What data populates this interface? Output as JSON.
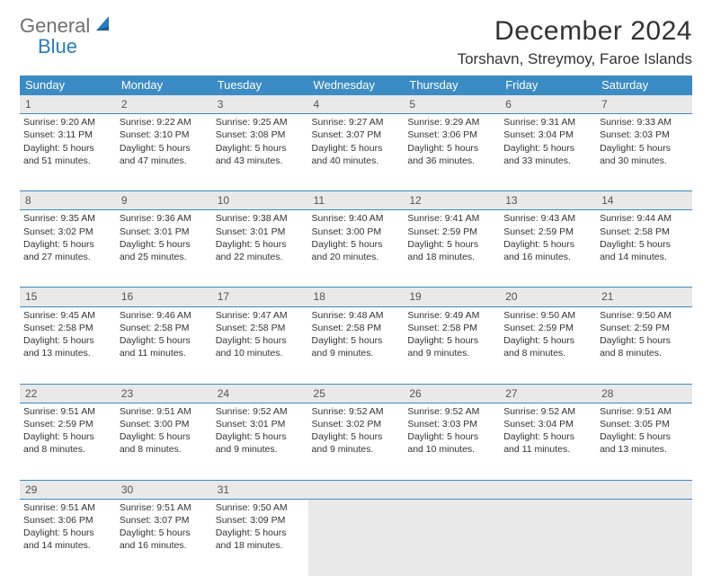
{
  "brand": {
    "text1": "General",
    "text2": "Blue"
  },
  "title": "December 2024",
  "location": "Torshavn, Streymoy, Faroe Islands",
  "colors": {
    "header_bg": "#3b8bc5",
    "header_fg": "#ffffff",
    "daynum_bg": "#e9e9e9",
    "rule": "#3b8bc5",
    "text": "#333333",
    "logo_gray": "#6f6f6f",
    "logo_blue": "#2a7bbf",
    "page_bg": "#ffffff"
  },
  "weekdays": [
    "Sunday",
    "Monday",
    "Tuesday",
    "Wednesday",
    "Thursday",
    "Friday",
    "Saturday"
  ],
  "weeks": [
    [
      {
        "n": "1",
        "sr": "Sunrise: 9:20 AM",
        "ss": "Sunset: 3:11 PM",
        "d1": "Daylight: 5 hours",
        "d2": "and 51 minutes."
      },
      {
        "n": "2",
        "sr": "Sunrise: 9:22 AM",
        "ss": "Sunset: 3:10 PM",
        "d1": "Daylight: 5 hours",
        "d2": "and 47 minutes."
      },
      {
        "n": "3",
        "sr": "Sunrise: 9:25 AM",
        "ss": "Sunset: 3:08 PM",
        "d1": "Daylight: 5 hours",
        "d2": "and 43 minutes."
      },
      {
        "n": "4",
        "sr": "Sunrise: 9:27 AM",
        "ss": "Sunset: 3:07 PM",
        "d1": "Daylight: 5 hours",
        "d2": "and 40 minutes."
      },
      {
        "n": "5",
        "sr": "Sunrise: 9:29 AM",
        "ss": "Sunset: 3:06 PM",
        "d1": "Daylight: 5 hours",
        "d2": "and 36 minutes."
      },
      {
        "n": "6",
        "sr": "Sunrise: 9:31 AM",
        "ss": "Sunset: 3:04 PM",
        "d1": "Daylight: 5 hours",
        "d2": "and 33 minutes."
      },
      {
        "n": "7",
        "sr": "Sunrise: 9:33 AM",
        "ss": "Sunset: 3:03 PM",
        "d1": "Daylight: 5 hours",
        "d2": "and 30 minutes."
      }
    ],
    [
      {
        "n": "8",
        "sr": "Sunrise: 9:35 AM",
        "ss": "Sunset: 3:02 PM",
        "d1": "Daylight: 5 hours",
        "d2": "and 27 minutes."
      },
      {
        "n": "9",
        "sr": "Sunrise: 9:36 AM",
        "ss": "Sunset: 3:01 PM",
        "d1": "Daylight: 5 hours",
        "d2": "and 25 minutes."
      },
      {
        "n": "10",
        "sr": "Sunrise: 9:38 AM",
        "ss": "Sunset: 3:01 PM",
        "d1": "Daylight: 5 hours",
        "d2": "and 22 minutes."
      },
      {
        "n": "11",
        "sr": "Sunrise: 9:40 AM",
        "ss": "Sunset: 3:00 PM",
        "d1": "Daylight: 5 hours",
        "d2": "and 20 minutes."
      },
      {
        "n": "12",
        "sr": "Sunrise: 9:41 AM",
        "ss": "Sunset: 2:59 PM",
        "d1": "Daylight: 5 hours",
        "d2": "and 18 minutes."
      },
      {
        "n": "13",
        "sr": "Sunrise: 9:43 AM",
        "ss": "Sunset: 2:59 PM",
        "d1": "Daylight: 5 hours",
        "d2": "and 16 minutes."
      },
      {
        "n": "14",
        "sr": "Sunrise: 9:44 AM",
        "ss": "Sunset: 2:58 PM",
        "d1": "Daylight: 5 hours",
        "d2": "and 14 minutes."
      }
    ],
    [
      {
        "n": "15",
        "sr": "Sunrise: 9:45 AM",
        "ss": "Sunset: 2:58 PM",
        "d1": "Daylight: 5 hours",
        "d2": "and 13 minutes."
      },
      {
        "n": "16",
        "sr": "Sunrise: 9:46 AM",
        "ss": "Sunset: 2:58 PM",
        "d1": "Daylight: 5 hours",
        "d2": "and 11 minutes."
      },
      {
        "n": "17",
        "sr": "Sunrise: 9:47 AM",
        "ss": "Sunset: 2:58 PM",
        "d1": "Daylight: 5 hours",
        "d2": "and 10 minutes."
      },
      {
        "n": "18",
        "sr": "Sunrise: 9:48 AM",
        "ss": "Sunset: 2:58 PM",
        "d1": "Daylight: 5 hours",
        "d2": "and 9 minutes."
      },
      {
        "n": "19",
        "sr": "Sunrise: 9:49 AM",
        "ss": "Sunset: 2:58 PM",
        "d1": "Daylight: 5 hours",
        "d2": "and 9 minutes."
      },
      {
        "n": "20",
        "sr": "Sunrise: 9:50 AM",
        "ss": "Sunset: 2:59 PM",
        "d1": "Daylight: 5 hours",
        "d2": "and 8 minutes."
      },
      {
        "n": "21",
        "sr": "Sunrise: 9:50 AM",
        "ss": "Sunset: 2:59 PM",
        "d1": "Daylight: 5 hours",
        "d2": "and 8 minutes."
      }
    ],
    [
      {
        "n": "22",
        "sr": "Sunrise: 9:51 AM",
        "ss": "Sunset: 2:59 PM",
        "d1": "Daylight: 5 hours",
        "d2": "and 8 minutes."
      },
      {
        "n": "23",
        "sr": "Sunrise: 9:51 AM",
        "ss": "Sunset: 3:00 PM",
        "d1": "Daylight: 5 hours",
        "d2": "and 8 minutes."
      },
      {
        "n": "24",
        "sr": "Sunrise: 9:52 AM",
        "ss": "Sunset: 3:01 PM",
        "d1": "Daylight: 5 hours",
        "d2": "and 9 minutes."
      },
      {
        "n": "25",
        "sr": "Sunrise: 9:52 AM",
        "ss": "Sunset: 3:02 PM",
        "d1": "Daylight: 5 hours",
        "d2": "and 9 minutes."
      },
      {
        "n": "26",
        "sr": "Sunrise: 9:52 AM",
        "ss": "Sunset: 3:03 PM",
        "d1": "Daylight: 5 hours",
        "d2": "and 10 minutes."
      },
      {
        "n": "27",
        "sr": "Sunrise: 9:52 AM",
        "ss": "Sunset: 3:04 PM",
        "d1": "Daylight: 5 hours",
        "d2": "and 11 minutes."
      },
      {
        "n": "28",
        "sr": "Sunrise: 9:51 AM",
        "ss": "Sunset: 3:05 PM",
        "d1": "Daylight: 5 hours",
        "d2": "and 13 minutes."
      }
    ],
    [
      {
        "n": "29",
        "sr": "Sunrise: 9:51 AM",
        "ss": "Sunset: 3:06 PM",
        "d1": "Daylight: 5 hours",
        "d2": "and 14 minutes."
      },
      {
        "n": "30",
        "sr": "Sunrise: 9:51 AM",
        "ss": "Sunset: 3:07 PM",
        "d1": "Daylight: 5 hours",
        "d2": "and 16 minutes."
      },
      {
        "n": "31",
        "sr": "Sunrise: 9:50 AM",
        "ss": "Sunset: 3:09 PM",
        "d1": "Daylight: 5 hours",
        "d2": "and 18 minutes."
      },
      null,
      null,
      null,
      null
    ]
  ]
}
